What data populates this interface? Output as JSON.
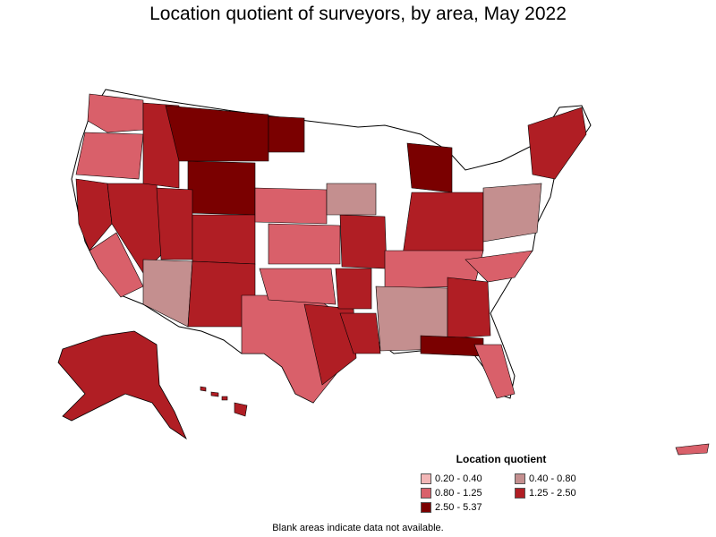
{
  "title": "Location quotient of surveyors, by area, May 2022",
  "legend": {
    "title": "Location quotient",
    "items": [
      {
        "label": "0.20 - 0.40",
        "color": "#f2b6b6"
      },
      {
        "label": "0.40 - 0.80",
        "color": "#c48f8f"
      },
      {
        "label": "0.80 - 1.25",
        "color": "#d9606a"
      },
      {
        "label": "1.25 - 2.50",
        "color": "#b01e24"
      },
      {
        "label": "2.50 - 5.37",
        "color": "#7a0000"
      }
    ]
  },
  "footnote": "Blank areas indicate data not available.",
  "colors": {
    "no_data": "#ffffff",
    "border": "#000000"
  }
}
